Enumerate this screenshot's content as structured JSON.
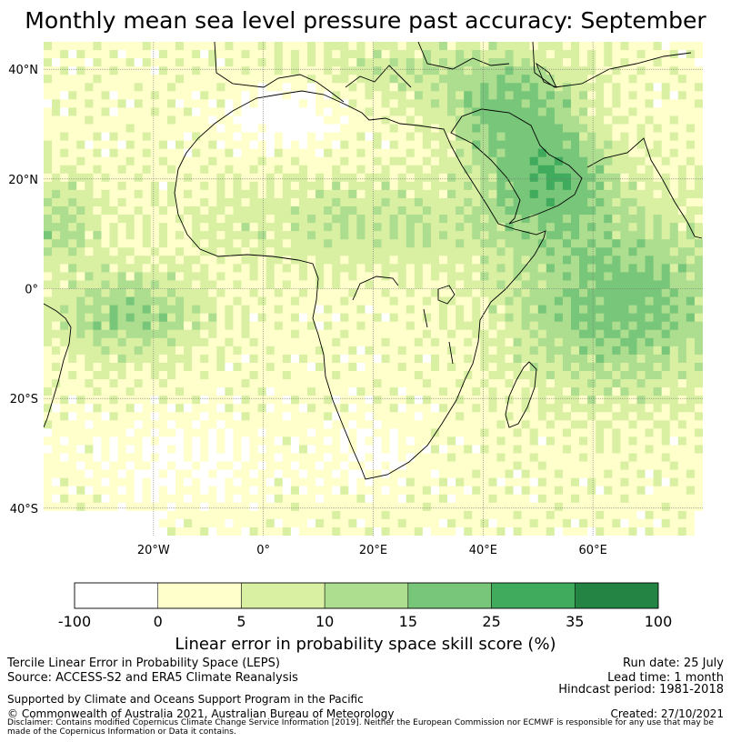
{
  "title": "Monthly mean sea level pressure past accuracy: September",
  "map": {
    "lat_ticks": [
      "40°N",
      "20°N",
      "0°",
      "20°S",
      "40°S"
    ],
    "lon_ticks": [
      "20°W",
      "0°",
      "20°E",
      "40°E",
      "60°E"
    ],
    "lat_values": [
      40,
      20,
      0,
      -20,
      -40
    ],
    "lon_values": [
      -20,
      0,
      20,
      40,
      60
    ],
    "extent": {
      "lon": [
        -40,
        80
      ],
      "lat": [
        -45,
        45
      ]
    }
  },
  "colorbar": {
    "ticks": [
      "-100",
      "0",
      "5",
      "10",
      "15",
      "25",
      "35",
      "100"
    ],
    "colors": [
      "#ffffff",
      "#ffffcc",
      "#d9f0a3",
      "#addd8e",
      "#78c679",
      "#41ab5d",
      "#238443"
    ],
    "label": "Linear error in probability space skill score (%)"
  },
  "footer": {
    "method": "Tercile Linear Error in Probability Space (LEPS)",
    "source": "Source: ACCESS-S2 and ERA5 Climate Reanalysis",
    "support": "Supported by Climate and Oceans Support Program in the Pacific",
    "copyright": "© Commonwealth of Australia 2021, Australian Bureau of Meteorology",
    "disclaimer": "Disclaimer: Contains modified Copernicus Climate Change Service Information [2019]. Neither the European Commission nor ECMWF is responsible for any use that may be made of the Copernicus Information or Data it contains.",
    "run_date": "Run date: 25 July",
    "lead_time": "Lead time: 1 month",
    "hindcast": "Hindcast period: 1981-2018",
    "created": "Created: 27/10/2021"
  }
}
